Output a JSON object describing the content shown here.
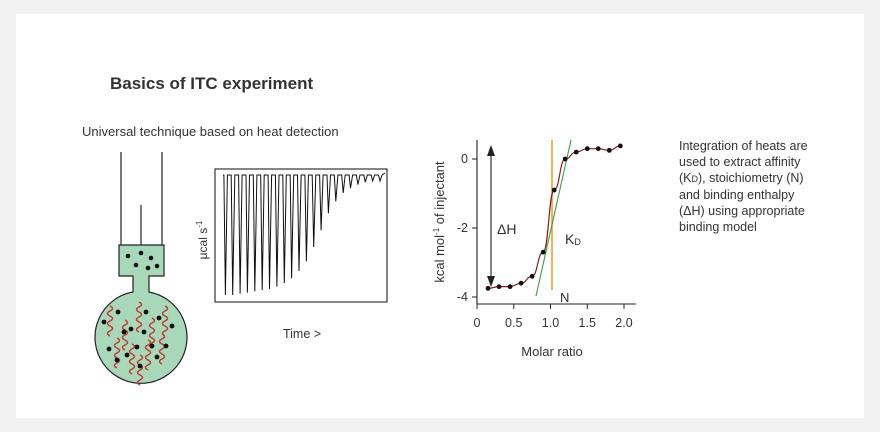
{
  "title": "Basics of ITC experiment",
  "subtitle": "Universal technique based on heat detection",
  "thermogram": {
    "ylabel_prefix": "μcal s",
    "ylabel_sup": "-1",
    "xlabel": "Time >",
    "peak_depths": [
      1.0,
      1.0,
      0.99,
      0.98,
      0.97,
      0.96,
      0.95,
      0.93,
      0.9,
      0.86,
      0.8,
      0.72,
      0.6,
      0.46,
      0.32,
      0.22,
      0.15,
      0.11,
      0.08,
      0.06,
      0.05,
      0.05
    ]
  },
  "binding_curve": {
    "ylabel_a": "kcal mol",
    "ylabel_sup": "-1",
    "ylabel_b": " of injectant",
    "xlabel": "Molar ratio",
    "x_ticks": [
      "0",
      "0.5",
      "1.0",
      "1.5",
      "2.0"
    ],
    "y_ticks": [
      "0",
      "-2",
      "-4"
    ],
    "delta_h_label": "ΔH",
    "kd_label_main": "K",
    "kd_label_sub": "D",
    "n_label": "N",
    "points_x": [
      0.15,
      0.3,
      0.45,
      0.6,
      0.75,
      0.9,
      1.05,
      1.2,
      1.35,
      1.5,
      1.65,
      1.8,
      1.95
    ],
    "points_y": [
      -3.75,
      -3.7,
      -3.7,
      -3.6,
      -3.4,
      -2.7,
      -0.9,
      0.0,
      0.2,
      0.3,
      0.3,
      0.25,
      0.38
    ],
    "colors": {
      "curve": "#8b1a1a",
      "points": "#111111",
      "n_line": "#f0a030",
      "slope": "#3aa03a"
    }
  },
  "description": {
    "line1": "Integration of heats are",
    "line2": "used to extract affinity",
    "line3_a": "(K",
    "line3_sub": "D",
    "line3_b": "), stoichiometry (N)",
    "line4": "and binding enthalpy",
    "line5": "(ΔH) using appropriate",
    "line6": "binding model"
  },
  "colors": {
    "cell_fill": "#a8d8b9",
    "ligand_dot": "#111111",
    "protein_coil": "#c0392b"
  }
}
